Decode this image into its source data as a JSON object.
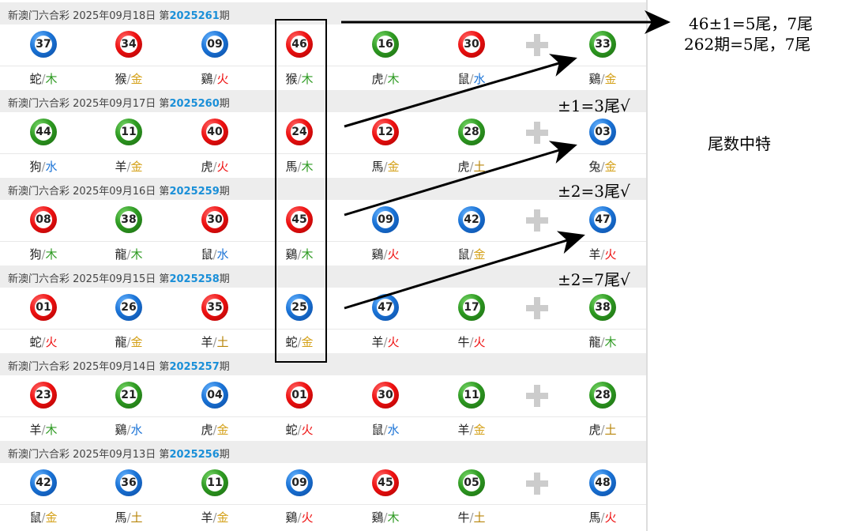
{
  "draws": [
    {
      "prefix": "新澳门六合彩 2025年09月18日 第",
      "issue": "2025261",
      "suffix": "期",
      "balls": [
        {
          "n": "37",
          "c": "blue",
          "z": "蛇",
          "e": "木"
        },
        {
          "n": "34",
          "c": "red",
          "z": "猴",
          "e": "金"
        },
        {
          "n": "09",
          "c": "blue",
          "z": "鷄",
          "e": "火"
        },
        {
          "n": "46",
          "c": "red",
          "z": "猴",
          "e": "木"
        },
        {
          "n": "16",
          "c": "green",
          "z": "虎",
          "e": "木"
        },
        {
          "n": "30",
          "c": "red",
          "z": "鼠",
          "e": "水"
        }
      ],
      "special": {
        "n": "33",
        "c": "green",
        "z": "鷄",
        "e": "金"
      }
    },
    {
      "prefix": "新澳门六合彩 2025年09月17日 第",
      "issue": "2025260",
      "suffix": "期",
      "balls": [
        {
          "n": "44",
          "c": "green",
          "z": "狗",
          "e": "水"
        },
        {
          "n": "11",
          "c": "green",
          "z": "羊",
          "e": "金"
        },
        {
          "n": "40",
          "c": "red",
          "z": "虎",
          "e": "火"
        },
        {
          "n": "24",
          "c": "red",
          "z": "馬",
          "e": "木"
        },
        {
          "n": "12",
          "c": "red",
          "z": "馬",
          "e": "金"
        },
        {
          "n": "28",
          "c": "green",
          "z": "虎",
          "e": "土"
        }
      ],
      "special": {
        "n": "03",
        "c": "blue",
        "z": "兔",
        "e": "金"
      }
    },
    {
      "prefix": "新澳门六合彩 2025年09月16日 第",
      "issue": "2025259",
      "suffix": "期",
      "balls": [
        {
          "n": "08",
          "c": "red",
          "z": "狗",
          "e": "木"
        },
        {
          "n": "38",
          "c": "green",
          "z": "龍",
          "e": "木"
        },
        {
          "n": "30",
          "c": "red",
          "z": "鼠",
          "e": "水"
        },
        {
          "n": "45",
          "c": "red",
          "z": "鷄",
          "e": "木"
        },
        {
          "n": "09",
          "c": "blue",
          "z": "鷄",
          "e": "火"
        },
        {
          "n": "42",
          "c": "blue",
          "z": "鼠",
          "e": "金"
        }
      ],
      "special": {
        "n": "47",
        "c": "blue",
        "z": "羊",
        "e": "火"
      }
    },
    {
      "prefix": "新澳门六合彩 2025年09月15日 第",
      "issue": "2025258",
      "suffix": "期",
      "balls": [
        {
          "n": "01",
          "c": "red",
          "z": "蛇",
          "e": "火"
        },
        {
          "n": "26",
          "c": "blue",
          "z": "龍",
          "e": "金"
        },
        {
          "n": "35",
          "c": "red",
          "z": "羊",
          "e": "土"
        },
        {
          "n": "25",
          "c": "blue",
          "z": "蛇",
          "e": "金"
        },
        {
          "n": "47",
          "c": "blue",
          "z": "羊",
          "e": "火"
        },
        {
          "n": "17",
          "c": "green",
          "z": "牛",
          "e": "火"
        }
      ],
      "special": {
        "n": "38",
        "c": "green",
        "z": "龍",
        "e": "木"
      }
    },
    {
      "prefix": "新澳门六合彩 2025年09月14日 第",
      "issue": "2025257",
      "suffix": "期",
      "balls": [
        {
          "n": "23",
          "c": "red",
          "z": "羊",
          "e": "木"
        },
        {
          "n": "21",
          "c": "green",
          "z": "鷄",
          "e": "水"
        },
        {
          "n": "04",
          "c": "blue",
          "z": "虎",
          "e": "金"
        },
        {
          "n": "01",
          "c": "red",
          "z": "蛇",
          "e": "火"
        },
        {
          "n": "30",
          "c": "red",
          "z": "鼠",
          "e": "水"
        },
        {
          "n": "11",
          "c": "green",
          "z": "羊",
          "e": "金"
        }
      ],
      "special": {
        "n": "28",
        "c": "green",
        "z": "虎",
        "e": "土"
      }
    },
    {
      "prefix": "新澳门六合彩 2025年09月13日 第",
      "issue": "2025256",
      "suffix": "期",
      "balls": [
        {
          "n": "42",
          "c": "blue",
          "z": "鼠",
          "e": "金"
        },
        {
          "n": "36",
          "c": "blue",
          "z": "馬",
          "e": "土"
        },
        {
          "n": "11",
          "c": "green",
          "z": "羊",
          "e": "金"
        },
        {
          "n": "09",
          "c": "blue",
          "z": "鷄",
          "e": "火"
        },
        {
          "n": "45",
          "c": "red",
          "z": "鷄",
          "e": "木"
        },
        {
          "n": "05",
          "c": "green",
          "z": "牛",
          "e": "土"
        }
      ],
      "special": {
        "n": "48",
        "c": "blue",
        "z": "馬",
        "e": "火"
      }
    }
  ],
  "separator": "/",
  "notes": {
    "top_line1": "46±1=5尾，7尾",
    "top_line2": "262期=5尾，7尾",
    "check1": "±1=3尾√",
    "check2": "±2=3尾√",
    "check3": "±2=7尾√",
    "side": "尾数中特"
  },
  "colors": {
    "red": "#e11",
    "blue": "#1a73d6",
    "green": "#2e9a22",
    "issue": "#1a8fd8"
  }
}
